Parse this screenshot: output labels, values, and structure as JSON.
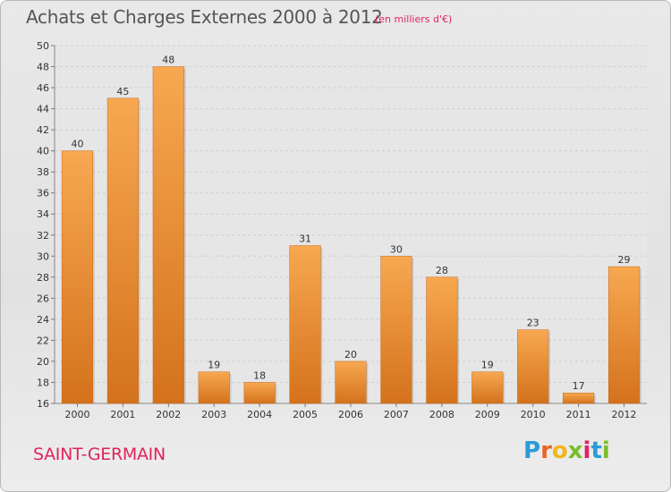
{
  "header": {
    "title": "Achats et Charges Externes 2000 à 2012",
    "subtitle": "(en milliers d'€)"
  },
  "footer": {
    "city": "SAINT-GERMAIN",
    "logo_letters": [
      "P",
      "r",
      "o",
      "x",
      "i",
      "t",
      "i"
    ],
    "logo_colors": [
      "#2a9bd8",
      "#e8632a",
      "#f2b51c",
      "#7bbd2c",
      "#e0245e",
      "#2a9bd8",
      "#7bbd2c"
    ]
  },
  "colors": {
    "bar_light": "#f7a851",
    "bar_dark": "#d4721c",
    "grid": "#cfcfcf",
    "title": "#555555",
    "accent": "#e0245e"
  },
  "chart_data": {
    "type": "bar",
    "title": "Achats et Charges Externes 2000 à 2012",
    "subtitle": "(en milliers d'€)",
    "categories": [
      "2000",
      "2001",
      "2002",
      "2003",
      "2004",
      "2005",
      "2006",
      "2007",
      "2008",
      "2009",
      "2010",
      "2011",
      "2012"
    ],
    "values": [
      40,
      45,
      48,
      19,
      18,
      31,
      20,
      30,
      28,
      19,
      23,
      17,
      29
    ],
    "ylim": [
      16,
      50
    ],
    "yticks": [
      16,
      18,
      20,
      22,
      24,
      26,
      28,
      30,
      32,
      34,
      36,
      38,
      40,
      42,
      44,
      46,
      48,
      50
    ],
    "grid": true,
    "xlabel": "",
    "ylabel": ""
  }
}
